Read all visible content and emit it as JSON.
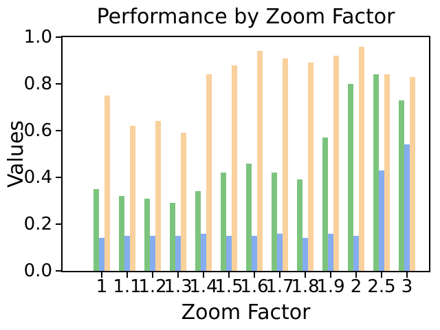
{
  "chart_data": {
    "type": "bar",
    "title": "Performance by Zoom Factor",
    "xlabel": "Zoom Factor",
    "ylabel": "Values",
    "categories": [
      "1",
      "1.1",
      "1.2",
      "1.3",
      "1.4",
      "1.5",
      "1.6",
      "1.7",
      "1.8",
      "1.9",
      "2",
      "2.5",
      "3"
    ],
    "series": [
      {
        "name": "green",
        "color": "#7cc47e",
        "values": [
          0.35,
          0.32,
          0.31,
          0.29,
          0.34,
          0.42,
          0.46,
          0.42,
          0.39,
          0.57,
          0.8,
          0.84,
          0.73
        ]
      },
      {
        "name": "blue",
        "color": "#85adf0",
        "values": [
          0.14,
          0.15,
          0.15,
          0.15,
          0.16,
          0.15,
          0.15,
          0.16,
          0.14,
          0.16,
          0.15,
          0.43,
          0.54
        ]
      },
      {
        "name": "orange",
        "color": "#f9d19c",
        "values": [
          0.75,
          0.62,
          0.64,
          0.59,
          0.84,
          0.88,
          0.94,
          0.91,
          0.89,
          0.92,
          0.96,
          0.84,
          0.83
        ]
      }
    ],
    "ylim": [
      0.0,
      1.0
    ],
    "yticks": [
      "0.0",
      "0.2",
      "0.4",
      "0.6",
      "0.8",
      "1.0"
    ],
    "grid": false,
    "legend": "none",
    "axis_color": "#000000",
    "background_color": "#ffffff"
  }
}
